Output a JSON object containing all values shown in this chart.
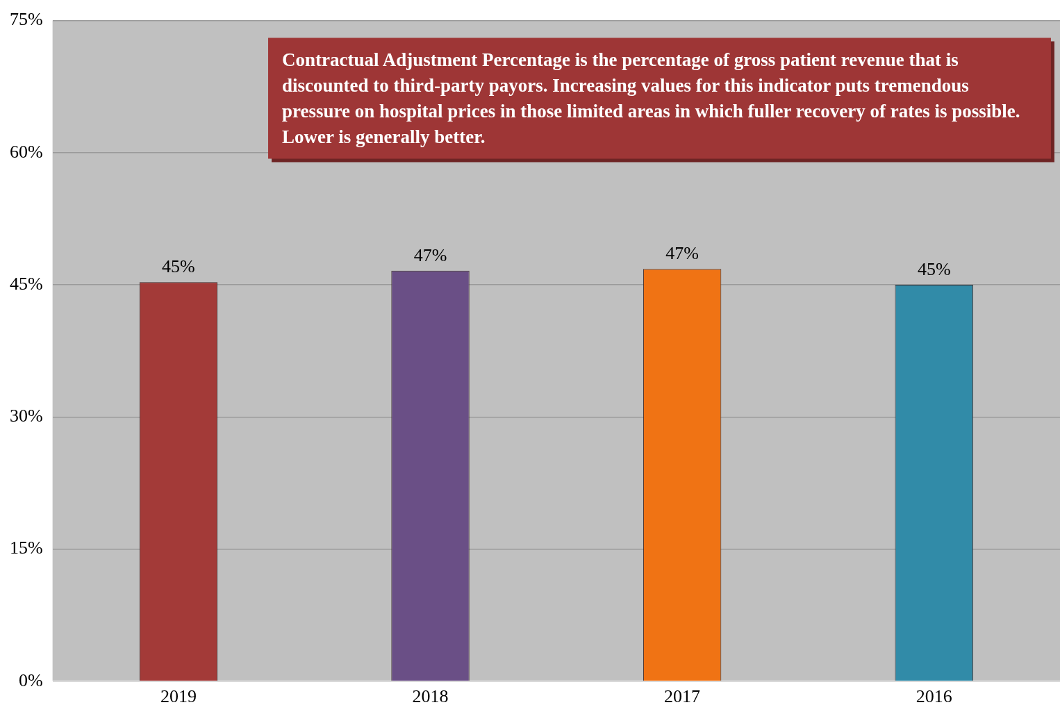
{
  "chart_data": {
    "type": "bar",
    "categories": [
      "2019",
      "2018",
      "2017",
      "2016"
    ],
    "values": [
      45.3,
      46.6,
      46.8,
      45.0
    ],
    "colors": [
      "#a33a38",
      "#6a4f86",
      "#f07314",
      "#318ba8"
    ],
    "value_labels": [
      "45%",
      "47%",
      "47%",
      "45%"
    ],
    "ylim": [
      0,
      75
    ],
    "yticks": [
      {
        "value": 0,
        "label": "0%"
      },
      {
        "value": 15,
        "label": "15%"
      },
      {
        "value": 30,
        "label": "30%"
      },
      {
        "value": 45,
        "label": "45%"
      },
      {
        "value": 60,
        "label": "60%"
      },
      {
        "value": 75,
        "label": "75%"
      }
    ],
    "grid": "y",
    "legend": false,
    "annotations": [
      "Contractual Adjustment Percentage is the percentage of gross patient revenue that is discounted to third-party payors. Increasing values for this indicator puts tremendous pressure on hospital prices in those limited areas in which fuller recovery of rates is possible. Lower is generally better."
    ]
  }
}
